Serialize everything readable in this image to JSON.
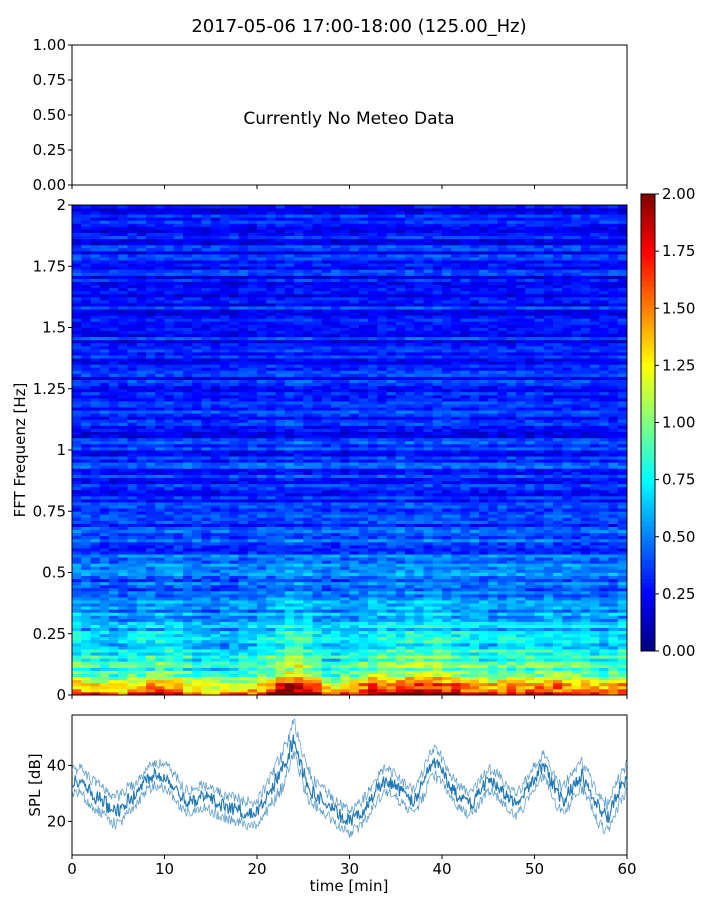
{
  "title": "2017-05-06 17:00-18:00 (125.00_Hz)",
  "chart_data": [
    {
      "panel": "meteo",
      "type": "line",
      "series": [],
      "annotation": "Currently No Meteo Data",
      "ylim": [
        0.0,
        1.0
      ],
      "yticks": [
        "0.00",
        "0.25",
        "0.50",
        "0.75",
        "1.00"
      ],
      "xlim": [
        0,
        60
      ],
      "grid": false
    },
    {
      "panel": "spectrogram",
      "type": "heatmap",
      "ylabel": "FFT Frequenz [Hz]",
      "ylim": [
        0,
        2
      ],
      "yticks": [
        "0",
        "0.25",
        "0.5",
        "0.75",
        "1",
        "1.25",
        "1.5",
        "1.75",
        "2"
      ],
      "xlim": [
        0,
        60
      ],
      "colormap": "jet",
      "colorbar": {
        "range": [
          0.0,
          2.0
        ],
        "ticks": [
          "0.00",
          "0.25",
          "0.50",
          "0.75",
          "1.00",
          "1.25",
          "1.50",
          "1.75",
          "2.00"
        ]
      },
      "intensity_by_frequency": [
        {
          "f": 0.0,
          "value": 1.8
        },
        {
          "f": 0.05,
          "value": 1.3
        },
        {
          "f": 0.1,
          "value": 0.95
        },
        {
          "f": 0.2,
          "value": 0.75
        },
        {
          "f": 0.3,
          "value": 0.6
        },
        {
          "f": 0.5,
          "value": 0.45
        },
        {
          "f": 0.8,
          "value": 0.35
        },
        {
          "f": 1.2,
          "value": 0.3
        },
        {
          "f": 2.0,
          "value": 0.28
        }
      ],
      "intensity_by_time": [
        {
          "t": 0,
          "value": 1.05
        },
        {
          "t": 5,
          "value": 0.9
        },
        {
          "t": 10,
          "value": 1.1
        },
        {
          "t": 15,
          "value": 0.85
        },
        {
          "t": 20,
          "value": 0.95
        },
        {
          "t": 24,
          "value": 1.35
        },
        {
          "t": 28,
          "value": 0.9
        },
        {
          "t": 33,
          "value": 1.15
        },
        {
          "t": 39,
          "value": 1.2
        },
        {
          "t": 45,
          "value": 1.0
        },
        {
          "t": 52,
          "value": 1.1
        },
        {
          "t": 57,
          "value": 0.95
        },
        {
          "t": 60,
          "value": 1.05
        }
      ],
      "grid": false
    },
    {
      "panel": "spl",
      "type": "line",
      "xlabel": "time [min]",
      "ylabel": "SPL [dB]",
      "xlim": [
        0,
        60
      ],
      "ylim": [
        8,
        58
      ],
      "xticks": [
        "0",
        "10",
        "20",
        "30",
        "40",
        "50",
        "60"
      ],
      "yticks": [
        "20",
        "40"
      ],
      "color": "#1f77b4",
      "series": [
        {
          "x": [
            0,
            1,
            2,
            3,
            4,
            5,
            6,
            7,
            8,
            9,
            10,
            11,
            12,
            13,
            14,
            15,
            16,
            17,
            18,
            19,
            20,
            21,
            22,
            23,
            24,
            25,
            26,
            27,
            28,
            29,
            30,
            31,
            32,
            33,
            34,
            35,
            36,
            37,
            38,
            39,
            40,
            41,
            42,
            43,
            44,
            45,
            46,
            47,
            48,
            49,
            50,
            51,
            52,
            53,
            54,
            55,
            56,
            57,
            58,
            59,
            60
          ],
          "y": [
            34,
            35,
            30,
            28,
            25,
            24,
            27,
            30,
            35,
            37,
            36,
            33,
            28,
            27,
            29,
            28,
            26,
            25,
            24,
            23,
            23,
            28,
            34,
            40,
            50,
            38,
            30,
            28,
            25,
            22,
            20,
            22,
            26,
            32,
            35,
            33,
            29,
            27,
            34,
            42,
            38,
            32,
            28,
            26,
            30,
            35,
            33,
            29,
            26,
            30,
            36,
            40,
            33,
            27,
            32,
            37,
            31,
            24,
            21,
            30,
            36
          ],
          "spread": [
            6,
            6,
            7,
            7,
            8,
            7,
            7,
            6,
            6,
            6,
            6,
            6,
            6,
            6,
            6,
            6,
            6,
            6,
            6,
            6,
            6,
            7,
            8,
            9,
            8,
            8,
            7,
            6,
            6,
            6,
            6,
            6,
            6,
            6,
            6,
            6,
            6,
            6,
            7,
            7,
            7,
            6,
            6,
            6,
            6,
            6,
            6,
            6,
            6,
            6,
            6,
            6,
            6,
            7,
            7,
            7,
            7,
            7,
            7,
            7,
            7
          ]
        }
      ],
      "grid": false
    }
  ]
}
